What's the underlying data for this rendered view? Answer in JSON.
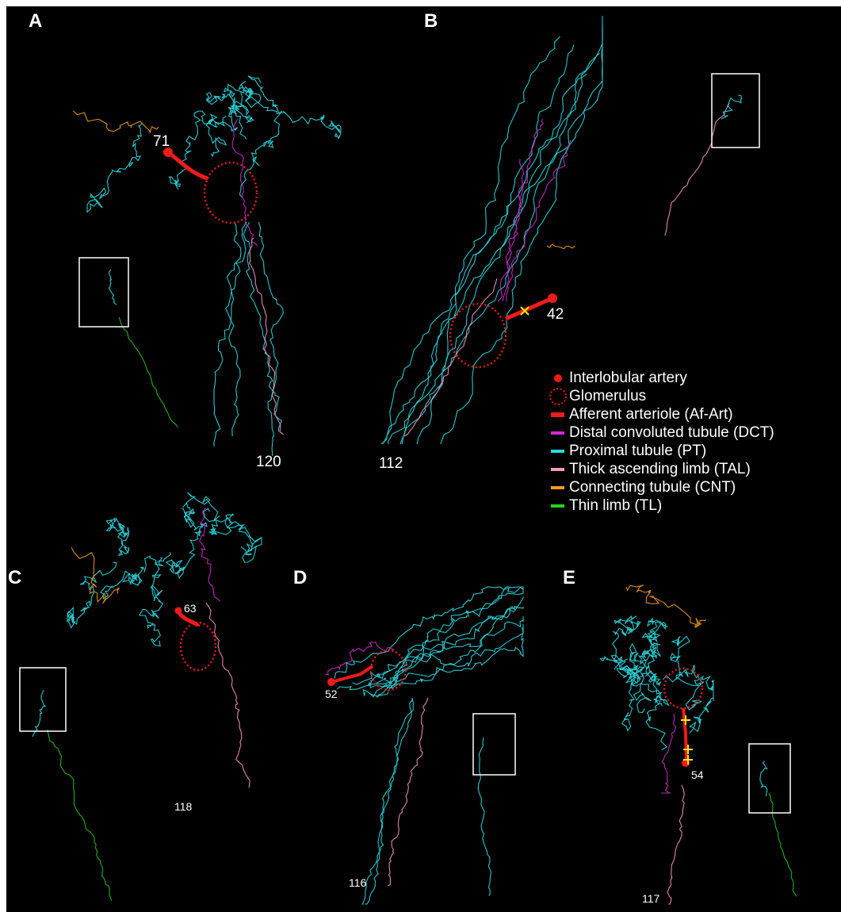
{
  "panels": [
    {
      "letter": "A",
      "labels": [
        71,
        120
      ]
    },
    {
      "letter": "B",
      "labels": [
        42,
        112
      ]
    },
    {
      "letter": "C",
      "labels": [
        63,
        118
      ]
    },
    {
      "letter": "D",
      "labels": [
        52,
        116
      ]
    },
    {
      "letter": "E",
      "labels": [
        54,
        117
      ]
    }
  ],
  "legend": [
    "Interlobular artery",
    "Glomerulus",
    "Afferent arteriole (Af-Art)",
    "Distal convoluted tubule (DCT)",
    "Proximal tubule (PT)",
    "Thick ascending limb (TAL)",
    "Connecting tubule (CNT)",
    "Thin limb (TL)"
  ]
}
